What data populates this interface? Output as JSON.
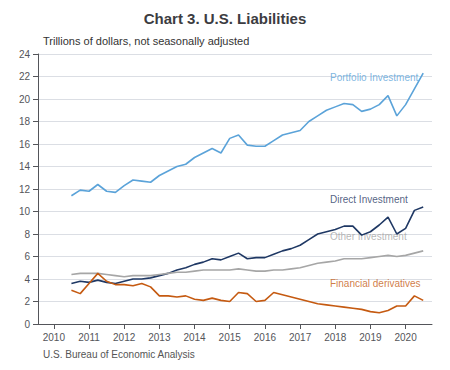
{
  "chart_data": {
    "type": "line",
    "title": "Chart 3. U.S. Liabilities",
    "subtitle": "Trillions of dollars, not seasonally adjusted",
    "footer": "U.S. Bureau of Economic Analysis",
    "x": [
      2010.5,
      2010.75,
      2011.0,
      2011.25,
      2011.5,
      2011.75,
      2012.0,
      2012.25,
      2012.5,
      2012.75,
      2013.0,
      2013.25,
      2013.5,
      2013.75,
      2014.0,
      2014.25,
      2014.5,
      2014.75,
      2015.0,
      2015.25,
      2015.5,
      2015.75,
      2016.0,
      2016.25,
      2016.5,
      2016.75,
      2017.0,
      2017.25,
      2017.5,
      2017.75,
      2018.0,
      2018.25,
      2018.5,
      2018.75,
      2019.0,
      2019.25,
      2019.5,
      2019.75,
      2020.0,
      2020.25,
      2020.5
    ],
    "series": [
      {
        "name": "Portfolio Investment",
        "color": "#5ba3d9",
        "values": [
          11.4,
          11.9,
          11.8,
          12.4,
          11.8,
          11.7,
          12.3,
          12.8,
          12.7,
          12.6,
          13.2,
          13.6,
          14.0,
          14.2,
          14.8,
          15.2,
          15.6,
          15.2,
          16.5,
          16.8,
          15.9,
          15.8,
          15.8,
          16.3,
          16.8,
          17.0,
          17.2,
          18.0,
          18.5,
          19.0,
          19.3,
          19.6,
          19.5,
          18.9,
          19.1,
          19.5,
          20.3,
          18.5,
          19.5,
          20.9,
          22.3
        ]
      },
      {
        "name": "Direct Investment",
        "color": "#1f3864",
        "values": [
          3.6,
          3.8,
          3.7,
          3.9,
          3.7,
          3.6,
          3.8,
          4.0,
          4.0,
          4.1,
          4.3,
          4.5,
          4.8,
          5.0,
          5.3,
          5.5,
          5.8,
          5.7,
          6.0,
          6.3,
          5.8,
          5.9,
          5.9,
          6.2,
          6.5,
          6.7,
          7.0,
          7.5,
          8.0,
          8.2,
          8.4,
          8.7,
          8.7,
          7.9,
          8.2,
          8.8,
          9.5,
          8.0,
          8.5,
          10.1,
          10.4
        ]
      },
      {
        "name": "Other Investment",
        "color": "#a6a6a6",
        "values": [
          4.4,
          4.5,
          4.5,
          4.5,
          4.4,
          4.3,
          4.2,
          4.3,
          4.3,
          4.3,
          4.4,
          4.5,
          4.6,
          4.6,
          4.7,
          4.8,
          4.8,
          4.8,
          4.8,
          4.9,
          4.8,
          4.7,
          4.7,
          4.8,
          4.8,
          4.9,
          5.0,
          5.2,
          5.4,
          5.5,
          5.6,
          5.8,
          5.8,
          5.8,
          5.9,
          6.0,
          6.1,
          6.0,
          6.1,
          6.3,
          6.5
        ]
      },
      {
        "name": "Financial derivatives",
        "color": "#c55a11",
        "values": [
          3.0,
          2.7,
          3.6,
          4.5,
          3.8,
          3.5,
          3.5,
          3.4,
          3.6,
          3.3,
          2.5,
          2.5,
          2.4,
          2.5,
          2.2,
          2.1,
          2.3,
          2.1,
          2.0,
          2.8,
          2.7,
          2.0,
          2.1,
          2.8,
          2.6,
          2.4,
          2.2,
          2.0,
          1.8,
          1.7,
          1.6,
          1.5,
          1.4,
          1.3,
          1.1,
          1.0,
          1.2,
          1.6,
          1.6,
          2.5,
          2.1
        ]
      }
    ],
    "annotations": [
      {
        "text": "Portfolio Investment",
        "x": 2017.85,
        "y": 21.5,
        "color": "#5ba3d9"
      },
      {
        "text": "Direct Investment",
        "x": 2017.85,
        "y": 10.65,
        "color": "#1f3864"
      },
      {
        "text": "Other Investment",
        "x": 2017.85,
        "y": 7.35,
        "color": "#a6a6a6"
      },
      {
        "text": "Financial derivatives",
        "x": 2017.85,
        "y": 3.15,
        "color": "#c55a11"
      }
    ],
    "xlim": [
      2009.55,
      2020.75
    ],
    "xticks": [
      2010,
      2011,
      2012,
      2013,
      2014,
      2015,
      2016,
      2017,
      2018,
      2019,
      2020
    ],
    "ylim": [
      0,
      24
    ],
    "yticks": [
      0,
      2,
      4,
      6,
      8,
      10,
      12,
      14,
      16,
      18,
      20,
      22,
      24
    ],
    "grid": true
  }
}
